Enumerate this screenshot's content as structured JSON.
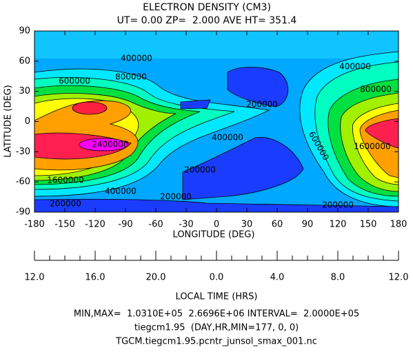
{
  "chart_data": {
    "type": "contour",
    "title": "ELECTRON DENSITY (CM3)",
    "subtitle": "UT= 0.00 ZP=  2.000 AVE HT= 351.4",
    "xlabel": "LONGITUDE (DEG)",
    "ylabel": "LATITUDE (DEG)",
    "xlim": [
      -180,
      180
    ],
    "xticks": [
      -180,
      -150,
      -120,
      -90,
      -60,
      -30,
      0,
      30,
      60,
      90,
      120,
      150,
      180
    ],
    "ylim": [
      -90,
      90
    ],
    "yticks": [
      -90,
      -60,
      -30,
      0,
      30,
      60,
      90
    ],
    "lt_label": "LOCAL TIME (HRS)",
    "lt_lim": [
      12,
      36
    ],
    "lt_ticks": [
      {
        "value": 12,
        "label": "12.0"
      },
      {
        "value": 16,
        "label": "16.0"
      },
      {
        "value": 20,
        "label": "20.0"
      },
      {
        "value": 24,
        "label": "0.0"
      },
      {
        "value": 28,
        "label": "4.0"
      },
      {
        "value": 32,
        "label": "8.0"
      },
      {
        "value": 36,
        "label": "12.0"
      }
    ],
    "contour_labels": [
      400000,
      600000,
      800000,
      200000,
      400000,
      2400000,
      1600000,
      400000,
      200000,
      200000,
      200000,
      600000,
      400000,
      800000,
      1600000,
      200000
    ],
    "footer": [
      "MIN,MAX=  1.0310E+05  2.6696E+06 INTERVAL=  2.0000E+05",
      "tiegcm1.95  (DAY,HR,MIN=177, 0, 0)",
      "TGCM.tiegcm1.95.pcntr_junsol_smax_001.nc"
    ]
  }
}
